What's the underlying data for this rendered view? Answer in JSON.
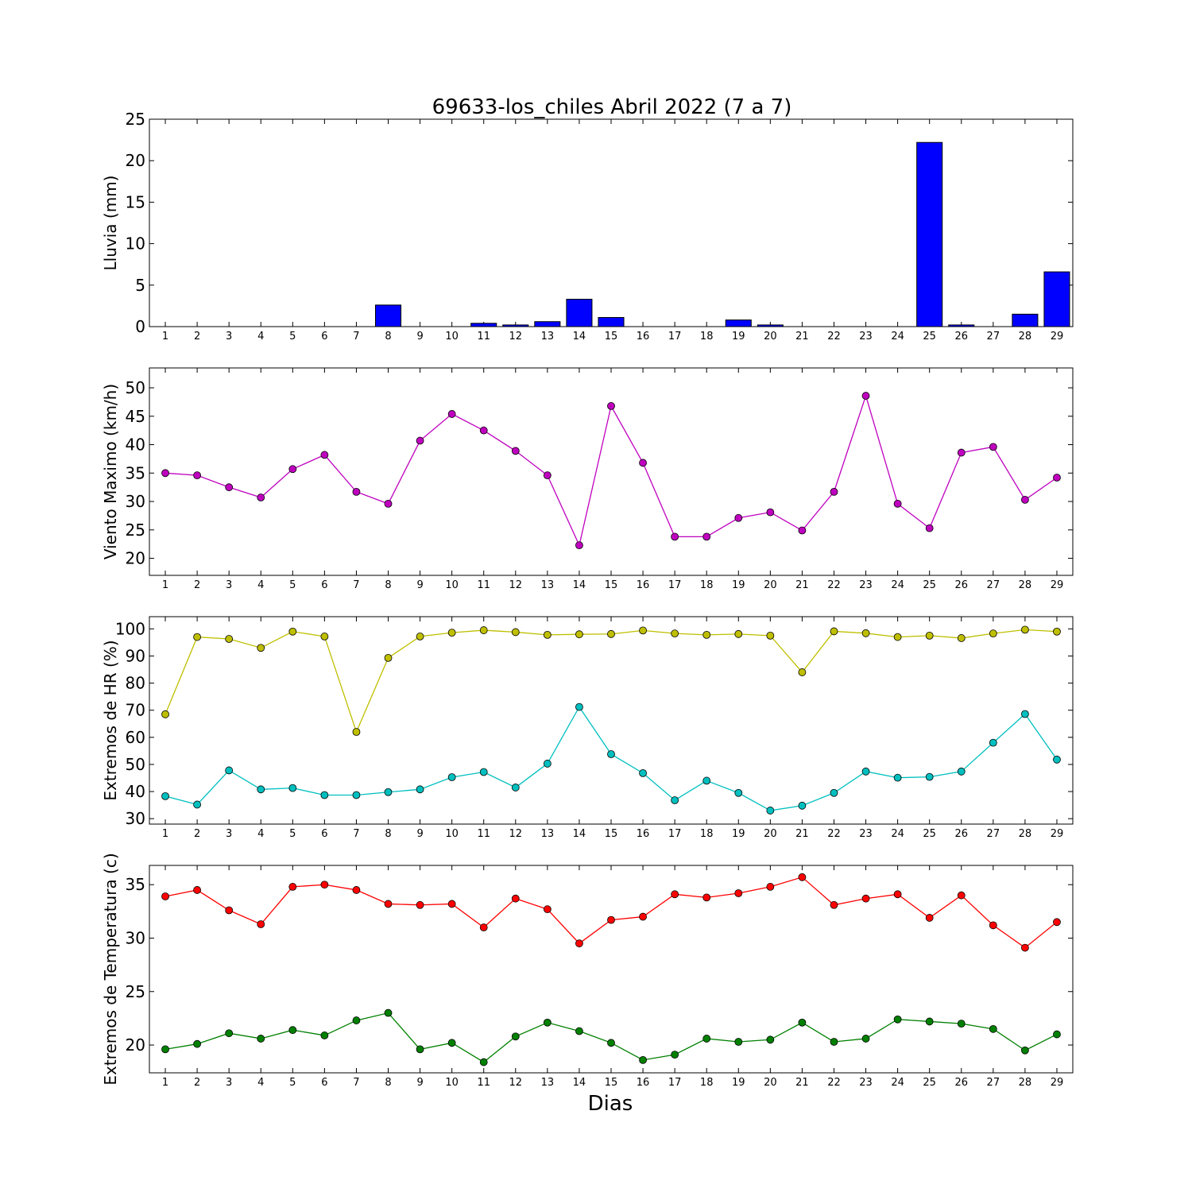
{
  "title": "69633-los_chiles Abril 2022  (7 a 7)",
  "xlabel": "Dias",
  "chart_data": [
    {
      "type": "bar",
      "title": "69633-los_chiles Abril 2022  (7 a 7)",
      "xlabel": "",
      "ylabel": "Lluvia (mm)",
      "ylim": [
        0,
        25
      ],
      "yticks": [
        0,
        5,
        10,
        15,
        20,
        25
      ],
      "grid": false,
      "categories": [
        1,
        2,
        3,
        4,
        5,
        6,
        7,
        8,
        9,
        10,
        11,
        12,
        13,
        14,
        15,
        16,
        17,
        18,
        19,
        20,
        21,
        22,
        23,
        24,
        25,
        26,
        27,
        28,
        29
      ],
      "series": [
        {
          "color": "#0000ff",
          "values": [
            0,
            0,
            0,
            0,
            0,
            0,
            0,
            2.6,
            0,
            0,
            0.4,
            0.2,
            0.6,
            3.3,
            1.1,
            0,
            0,
            0,
            0.8,
            0.2,
            0,
            0,
            0,
            0,
            22.2,
            0.2,
            0,
            1.5,
            6.6
          ]
        }
      ]
    },
    {
      "type": "line",
      "ylabel": "Viento Maximo (km/h)",
      "ylim": [
        17,
        53.5
      ],
      "yticks": [
        20,
        25,
        30,
        35,
        40,
        45,
        50
      ],
      "grid": false,
      "x": [
        1,
        2,
        3,
        4,
        5,
        6,
        7,
        8,
        9,
        10,
        11,
        12,
        13,
        14,
        15,
        16,
        17,
        18,
        19,
        20,
        21,
        22,
        23,
        24,
        25,
        26,
        27,
        28,
        29
      ],
      "series": [
        {
          "color": "#bf00bf",
          "values": [
            35,
            34.6,
            32.5,
            30.7,
            35.7,
            38.2,
            31.7,
            29.6,
            40.7,
            45.4,
            42.5,
            38.9,
            34.6,
            22.3,
            46.8,
            36.8,
            23.8,
            23.8,
            27.1,
            28.1,
            24.9,
            31.7,
            48.6,
            29.6,
            25.3,
            38.6,
            39.6,
            30.3,
            34.2
          ]
        }
      ]
    },
    {
      "type": "line",
      "ylabel": "Extremos de HR (%)",
      "ylim": [
        28,
        104.5
      ],
      "yticks": [
        30,
        40,
        50,
        60,
        70,
        80,
        90,
        100
      ],
      "grid": false,
      "x": [
        1,
        2,
        3,
        4,
        5,
        6,
        7,
        8,
        9,
        10,
        11,
        12,
        13,
        14,
        15,
        16,
        17,
        18,
        19,
        20,
        21,
        22,
        23,
        24,
        25,
        26,
        27,
        28,
        29
      ],
      "series": [
        {
          "color": "#bfbf00",
          "values": [
            68.5,
            97,
            96.3,
            93,
            99,
            97.2,
            62,
            89.3,
            97.2,
            98.6,
            99.5,
            98.8,
            97.8,
            98,
            98.1,
            99.4,
            98.3,
            97.8,
            98.1,
            97.5,
            84,
            99.1,
            98.4,
            97,
            97.5,
            96.6,
            98.3,
            99.7,
            99
          ]
        },
        {
          "color": "#00bfbf",
          "values": [
            38.3,
            35.2,
            47.8,
            40.8,
            41.3,
            38.7,
            38.7,
            39.8,
            40.8,
            45.3,
            47.2,
            41.5,
            50.3,
            71.2,
            53.8,
            46.8,
            36.8,
            44,
            39.5,
            33,
            34.8,
            39.5,
            47.4,
            45.1,
            45.4,
            47.4,
            58,
            68.6,
            51.8
          ]
        }
      ]
    },
    {
      "type": "line",
      "ylabel": "Extremos de Temperatura (c)",
      "ylim": [
        17.4,
        36.8
      ],
      "yticks": [
        20,
        25,
        30,
        35
      ],
      "grid": false,
      "x": [
        1,
        2,
        3,
        4,
        5,
        6,
        7,
        8,
        9,
        10,
        11,
        12,
        13,
        14,
        15,
        16,
        17,
        18,
        19,
        20,
        21,
        22,
        23,
        24,
        25,
        26,
        27,
        28,
        29
      ],
      "series": [
        {
          "color": "#ff0000",
          "values": [
            33.9,
            34.5,
            32.6,
            31.3,
            34.8,
            35,
            34.5,
            33.2,
            33.1,
            33.2,
            31,
            33.7,
            32.7,
            29.5,
            31.7,
            32,
            34.1,
            33.8,
            34.2,
            34.8,
            35.7,
            33.1,
            33.7,
            34.1,
            31.9,
            34,
            31.2,
            29.1,
            31.5
          ]
        },
        {
          "color": "#008000",
          "values": [
            19.6,
            20.1,
            21.1,
            20.6,
            21.4,
            20.9,
            22.3,
            23,
            19.6,
            20.2,
            18.4,
            20.8,
            22.1,
            21.3,
            20.2,
            18.6,
            19.1,
            20.6,
            20.3,
            20.5,
            22.1,
            20.3,
            20.6,
            22.4,
            22.2,
            22,
            21.5,
            19.5,
            21
          ]
        }
      ]
    }
  ]
}
